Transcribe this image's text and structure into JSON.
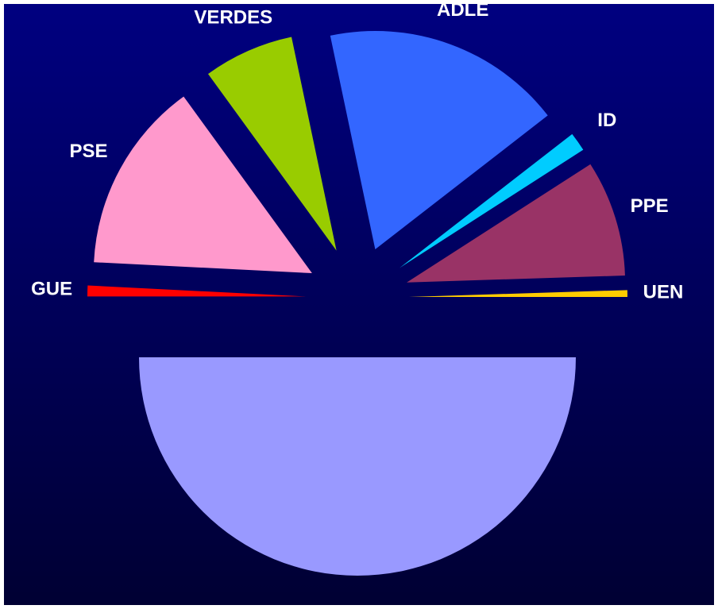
{
  "chart_data": {
    "type": "pie",
    "categories": [
      "GUE",
      "PSE",
      "VERDES",
      "ADLE",
      "ID",
      "PPE",
      "UEN",
      null
    ],
    "values": [
      0.8,
      14.2,
      6.7,
      17.8,
      1.4,
      8.6,
      0.5,
      50
    ],
    "colors": [
      "#ff0000",
      "#ff99cc",
      "#99cc00",
      "#3366ff",
      "#00ccff",
      "#993366",
      "#ffcc00",
      "#9999ff"
    ]
  }
}
